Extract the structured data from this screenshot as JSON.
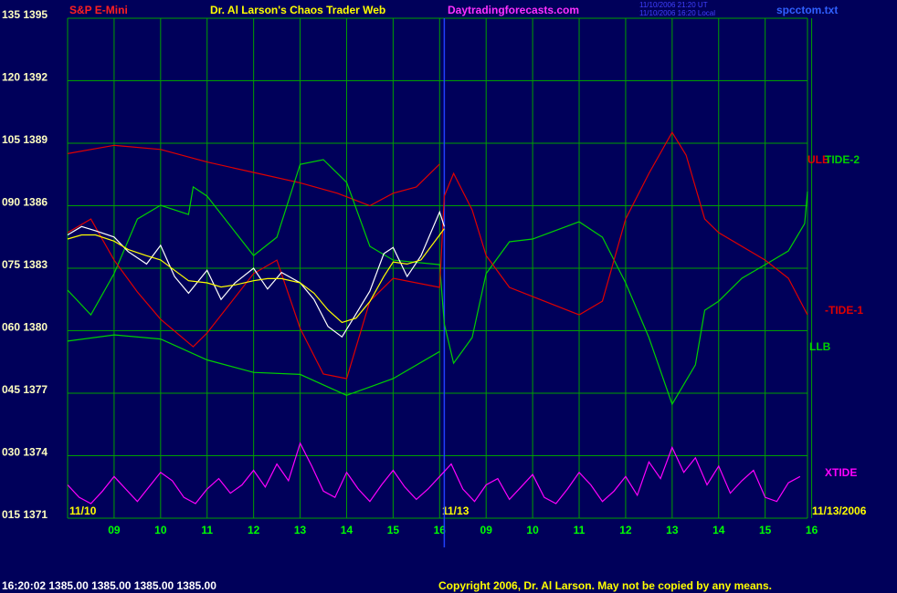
{
  "chart_data": {
    "type": "line",
    "symbol": "S&P E-Mini",
    "title": "Dr. Al Larson's Chaos Trader Web",
    "site": "Daytradingforecasts.com",
    "timestamps": [
      "11/10/2006 21:20 UT",
      "11/10/2006 16:20 Local"
    ],
    "file": "spcctom.txt",
    "date_labels": [
      "11/10",
      "11/13",
      "11/13/2006"
    ],
    "quote": "16:20:02  1385.00 1385.00 1385.00 1385.00",
    "copyright": "Copyright 2006, Dr. Al Larson. May not be copied by any means.",
    "grid": true,
    "xlim": [
      0,
      15.91
    ],
    "xticks": [
      {
        "value": 1,
        "label": "09"
      },
      {
        "value": 2,
        "label": "10"
      },
      {
        "value": 3,
        "label": "11"
      },
      {
        "value": 4,
        "label": "12"
      },
      {
        "value": 5,
        "label": "13"
      },
      {
        "value": 6,
        "label": "14"
      },
      {
        "value": 7,
        "label": "15"
      },
      {
        "value": 8,
        "label": "16"
      },
      {
        "value": 9,
        "label": "09"
      },
      {
        "value": 10,
        "label": "10"
      },
      {
        "value": 11,
        "label": "11"
      },
      {
        "value": 12,
        "label": "12"
      },
      {
        "value": 13,
        "label": "13"
      },
      {
        "value": 14,
        "label": "14"
      },
      {
        "value": 15,
        "label": "15"
      },
      {
        "value": 16,
        "label": "16"
      }
    ],
    "session_break": 8.1,
    "ylim": [
      1371,
      1395
    ],
    "yticks": [
      {
        "value": 1371,
        "label": "015 1371"
      },
      {
        "value": 1374,
        "label": "030 1374"
      },
      {
        "value": 1377,
        "label": "045 1377"
      },
      {
        "value": 1380,
        "label": "060 1380"
      },
      {
        "value": 1383,
        "label": "075 1383"
      },
      {
        "value": 1386,
        "label": "090 1386"
      },
      {
        "value": 1389,
        "label": "105 1389"
      },
      {
        "value": 1392,
        "label": "120 1392"
      },
      {
        "value": 1395,
        "label": "135 1395"
      }
    ],
    "series": [
      {
        "name": "ULB",
        "color": "#e00000",
        "x": [
          0,
          1,
          2,
          3,
          4,
          5,
          5.8,
          6.5,
          7,
          7.5,
          8
        ],
        "values": [
          1388.5,
          1388.9,
          1388.7,
          1388.1,
          1387.6,
          1387.1,
          1386.6,
          1386.0,
          1386.6,
          1386.9,
          1388.0
        ]
      },
      {
        "name": "TIDE-2",
        "color": "#00d000",
        "x": [
          0,
          0.5,
          1,
          1.5,
          2,
          2.6,
          2.7,
          3,
          4,
          4.5,
          5,
          5.5,
          6,
          6.5,
          7,
          8,
          8.1,
          8.3,
          8.7,
          9,
          9.5,
          10,
          11,
          11.5,
          12,
          12.5,
          13,
          13.5,
          13.7,
          14,
          14.5,
          15,
          15.5,
          15.85,
          15.91
        ],
        "values": [
          1381.95,
          1380.76,
          1382.74,
          1385.36,
          1386.02,
          1385.58,
          1386.9,
          1386.46,
          1383.61,
          1384.49,
          1387.99,
          1388.21,
          1387.12,
          1384.05,
          1383.39,
          1383.17,
          1380.33,
          1378.44,
          1379.67,
          1382.74,
          1384.27,
          1384.4,
          1385.23,
          1384.49,
          1382.3,
          1379.67,
          1376.47,
          1378.36,
          1380.98,
          1381.42,
          1382.52,
          1383.17,
          1383.83,
          1385.14,
          1386.68
        ]
      },
      {
        "name": "-TIDE-1",
        "color": "#e00000",
        "x": [
          0,
          0.5,
          1,
          1.5,
          2,
          2.7,
          3,
          4,
          4.5,
          5,
          5.5,
          6,
          6.5,
          7,
          8,
          8.1,
          8.3,
          8.7,
          9,
          9.5,
          10,
          11,
          11.5,
          12,
          12.5,
          13,
          13.3,
          13.7,
          14,
          15,
          15.5,
          15.91
        ],
        "values": [
          1384.71,
          1385.36,
          1383.39,
          1381.86,
          1380.55,
          1379.23,
          1379.89,
          1382.74,
          1383.39,
          1380.11,
          1377.92,
          1377.7,
          1381.42,
          1382.52,
          1382.08,
          1386.46,
          1387.55,
          1385.8,
          1383.61,
          1382.08,
          1381.64,
          1380.76,
          1381.42,
          1385.36,
          1387.55,
          1389.52,
          1388.43,
          1385.36,
          1384.71,
          1383.39,
          1382.52,
          1380.76
        ]
      },
      {
        "name": "LLB",
        "color": "#00d000",
        "x": [
          0,
          1,
          2,
          3,
          4,
          5,
          5.6,
          6,
          6.5,
          7,
          8
        ],
        "values": [
          1379.5,
          1379.8,
          1379.6,
          1378.6,
          1378.0,
          1377.9,
          1377.3,
          1376.9,
          1377.3,
          1377.7,
          1379.0
        ]
      },
      {
        "name": "XTIDE",
        "color": "#ff00ff",
        "x": [
          0,
          0.25,
          0.5,
          0.75,
          1,
          1.25,
          1.5,
          1.75,
          2,
          2.25,
          2.5,
          2.75,
          3,
          3.25,
          3.5,
          3.75,
          4,
          4.25,
          4.5,
          4.75,
          5,
          5.25,
          5.5,
          5.75,
          6,
          6.25,
          6.5,
          6.75,
          7,
          7.25,
          7.5,
          7.75,
          8,
          8.25,
          8.5,
          8.75,
          9,
          9.25,
          9.5,
          9.75,
          10,
          10.25,
          10.5,
          10.75,
          11,
          11.25,
          11.5,
          11.75,
          12,
          12.25,
          12.5,
          12.75,
          13,
          13.25,
          13.5,
          13.75,
          14,
          14.25,
          14.5,
          14.75,
          15,
          15.25,
          15.5,
          15.75
        ],
        "values": [
          1372.6,
          1372.0,
          1371.7,
          1372.3,
          1373.0,
          1372.4,
          1371.8,
          1372.5,
          1373.2,
          1372.8,
          1372.0,
          1371.7,
          1372.4,
          1372.9,
          1372.2,
          1372.6,
          1373.3,
          1372.5,
          1373.6,
          1372.8,
          1374.6,
          1373.5,
          1372.3,
          1372.0,
          1373.2,
          1372.4,
          1371.8,
          1372.6,
          1373.3,
          1372.5,
          1371.9,
          1372.4,
          1373.0,
          1373.6,
          1372.4,
          1371.8,
          1372.6,
          1372.9,
          1371.9,
          1372.5,
          1373.1,
          1372.0,
          1371.7,
          1372.4,
          1373.2,
          1372.6,
          1371.8,
          1372.3,
          1373.0,
          1372.1,
          1373.7,
          1372.9,
          1374.4,
          1373.2,
          1373.9,
          1372.6,
          1373.5,
          1372.2,
          1372.8,
          1373.3,
          1372.0,
          1371.8,
          1372.7,
          1373.0
        ]
      },
      {
        "color": "#ffffff",
        "x": [
          0,
          0.3,
          0.6,
          1,
          1.3,
          1.7,
          2,
          2.3,
          2.6,
          3,
          3.3,
          3.6,
          4,
          4.3,
          4.6,
          5,
          5.3,
          5.6,
          5.9,
          6.2,
          6.5,
          6.8,
          7,
          7.3,
          7.6,
          8,
          8.1
        ],
        "values": [
          1384.6,
          1385.0,
          1384.8,
          1384.5,
          1383.8,
          1383.2,
          1384.1,
          1382.6,
          1381.8,
          1382.9,
          1381.5,
          1382.3,
          1383.0,
          1382.0,
          1382.8,
          1382.3,
          1381.5,
          1380.2,
          1379.7,
          1380.8,
          1381.9,
          1383.7,
          1384.0,
          1382.6,
          1383.6,
          1385.7,
          1385.0
        ]
      },
      {
        "color": "#ffff00",
        "x": [
          0,
          0.3,
          0.6,
          1,
          1.3,
          1.7,
          2,
          2.3,
          2.6,
          3,
          3.3,
          3.6,
          4,
          4.3,
          4.6,
          5,
          5.3,
          5.6,
          5.9,
          6.2,
          6.5,
          6.8,
          7,
          7.3,
          7.6,
          8,
          8.1
        ],
        "values": [
          1384.4,
          1384.6,
          1384.6,
          1384.3,
          1383.9,
          1383.6,
          1383.4,
          1382.9,
          1382.4,
          1382.3,
          1382.1,
          1382.2,
          1382.4,
          1382.5,
          1382.5,
          1382.3,
          1381.8,
          1381.0,
          1380.4,
          1380.6,
          1381.4,
          1382.6,
          1383.3,
          1383.2,
          1383.4,
          1384.6,
          1384.9
        ]
      }
    ]
  }
}
